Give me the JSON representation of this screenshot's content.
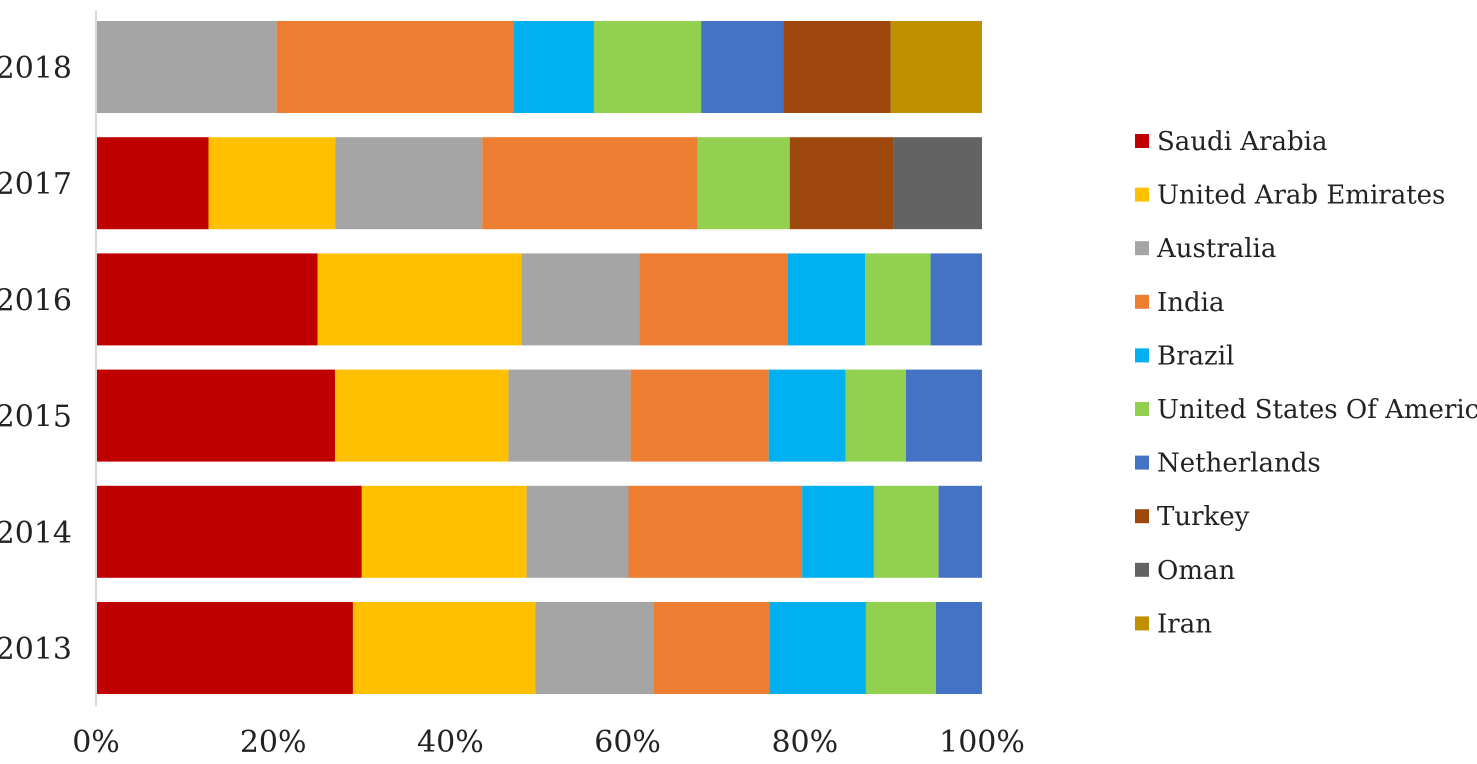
{
  "chart_data": {
    "type": "bar",
    "orientation": "horizontal",
    "stacked": "percent",
    "title": "",
    "xlabel": "",
    "ylabel": "",
    "xlim": [
      0,
      100
    ],
    "x_ticks": [
      "0%",
      "20%",
      "40%",
      "60%",
      "80%",
      "100%"
    ],
    "grid": false,
    "legend_position": "right",
    "categories": [
      "2018",
      "2017",
      "2016",
      "2015",
      "2014",
      "2013"
    ],
    "series": [
      {
        "name": "Saudi Arabia",
        "color": "#C00000",
        "values": [
          0,
          12.7,
          25,
          27,
          30,
          29
        ]
      },
      {
        "name": "United Arab Emirates",
        "color": "#FFC000",
        "values": [
          0,
          14.3,
          23,
          19.6,
          18.6,
          20.6
        ]
      },
      {
        "name": "Australia",
        "color": "#A5A5A5",
        "values": [
          20.4,
          16.6,
          13.3,
          13.8,
          11.5,
          13.3
        ]
      },
      {
        "name": "India",
        "color": "#ED7D31",
        "values": [
          26.7,
          24.3,
          16.8,
          15.6,
          19.6,
          13.1
        ]
      },
      {
        "name": "Brazil",
        "color": "#00B0F0",
        "values": [
          9.1,
          0,
          8.7,
          8.7,
          8.1,
          10.9
        ]
      },
      {
        "name": "United States Of America",
        "color": "#92D050",
        "values": [
          12.1,
          10.4,
          7.4,
          6.8,
          7.3,
          7.9
        ]
      },
      {
        "name": "Netherlands",
        "color": "#4472C4",
        "values": [
          9.3,
          0,
          5.8,
          8.6,
          4.9,
          5.2
        ]
      },
      {
        "name": "Turkey",
        "color": "#9E480E",
        "values": [
          12.1,
          11.7,
          0,
          0,
          0,
          0
        ]
      },
      {
        "name": "Oman",
        "color": "#636363",
        "values": [
          0,
          10,
          0,
          0,
          0,
          0
        ]
      },
      {
        "name": "Iran",
        "color": "#BF9000",
        "values": [
          10.3,
          0,
          0,
          0,
          0,
          0
        ]
      }
    ]
  }
}
